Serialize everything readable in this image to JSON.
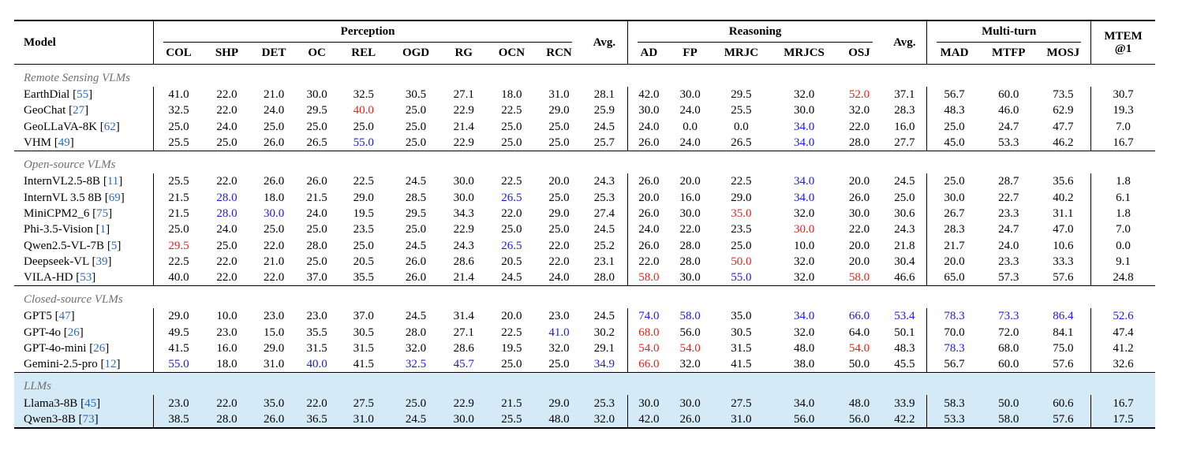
{
  "colors": {
    "best": "#e8231c",
    "second": "#1a1ae6",
    "citation": "#2a6ab8",
    "llm_row_bg": "#d4eaf6"
  },
  "header": {
    "model": "Model",
    "groups": {
      "perception": "Perception",
      "avg1": "Avg.",
      "reasoning": "Reasoning",
      "avg2": "Avg.",
      "multiturn": "Multi-turn",
      "mtem": "MTEM",
      "mtem_sub": "@1"
    },
    "perception_cols": [
      "COL",
      "SHP",
      "DET",
      "OC",
      "REL",
      "OGD",
      "RG",
      "OCN",
      "RCN"
    ],
    "reasoning_cols": [
      "AD",
      "FP",
      "MRJC",
      "MRJCS",
      "OSJ"
    ],
    "multiturn_cols": [
      "MAD",
      "MTFP",
      "MOSJ"
    ]
  },
  "sections": [
    {
      "title": "Remote Sensing VLMs",
      "highlight": false,
      "rows": [
        {
          "name": "EarthDial",
          "ref": "55",
          "vals": [
            "41.0",
            "22.0",
            "21.0",
            "30.0",
            "32.5",
            "30.5",
            "27.1",
            "18.0",
            "31.0",
            "28.1",
            "42.0",
            "30.0",
            "29.5",
            "32.0",
            "52.0",
            "37.1",
            "56.7",
            "60.0",
            "73.5",
            "30.7"
          ],
          "marks": {
            "14": "red"
          }
        },
        {
          "name": "GeoChat",
          "ref": "27",
          "vals": [
            "32.5",
            "22.0",
            "24.0",
            "29.5",
            "40.0",
            "25.0",
            "22.9",
            "22.5",
            "29.0",
            "25.9",
            "30.0",
            "24.0",
            "25.5",
            "30.0",
            "32.0",
            "28.3",
            "48.3",
            "46.0",
            "62.9",
            "19.3"
          ],
          "marks": {
            "4": "red"
          }
        },
        {
          "name": "GeoLLaVA-8K",
          "ref": "62",
          "vals": [
            "25.0",
            "24.0",
            "25.0",
            "25.0",
            "25.0",
            "25.0",
            "21.4",
            "25.0",
            "25.0",
            "24.5",
            "24.0",
            "0.0",
            "0.0",
            "34.0",
            "22.0",
            "16.0",
            "25.0",
            "24.7",
            "47.7",
            "7.0"
          ],
          "marks": {
            "13": "blue"
          }
        },
        {
          "name": "VHM",
          "ref": "49",
          "vals": [
            "25.5",
            "25.0",
            "26.0",
            "26.5",
            "55.0",
            "25.0",
            "22.9",
            "25.0",
            "25.0",
            "25.7",
            "26.0",
            "24.0",
            "26.5",
            "34.0",
            "28.0",
            "27.7",
            "45.0",
            "53.3",
            "46.2",
            "16.7"
          ],
          "marks": {
            "4": "blue",
            "13": "blue"
          }
        }
      ]
    },
    {
      "title": "Open-source VLMs",
      "highlight": false,
      "rows": [
        {
          "name": "InternVL2.5-8B",
          "ref": "11",
          "vals": [
            "25.5",
            "22.0",
            "26.0",
            "26.0",
            "22.5",
            "24.5",
            "30.0",
            "22.5",
            "20.0",
            "24.3",
            "26.0",
            "20.0",
            "22.5",
            "34.0",
            "20.0",
            "24.5",
            "25.0",
            "28.7",
            "35.6",
            "1.8"
          ],
          "marks": {
            "13": "blue"
          }
        },
        {
          "name": "InternVL 3.5 8B",
          "ref": "69",
          "vals": [
            "21.5",
            "28.0",
            "18.0",
            "21.5",
            "29.0",
            "28.5",
            "30.0",
            "26.5",
            "25.0",
            "25.3",
            "20.0",
            "16.0",
            "29.0",
            "34.0",
            "26.0",
            "25.0",
            "30.0",
            "22.7",
            "40.2",
            "6.1"
          ],
          "marks": {
            "1": "blue",
            "7": "blue",
            "13": "blue"
          }
        },
        {
          "name": "MiniCPM2_6",
          "ref": "75",
          "vals": [
            "21.5",
            "28.0",
            "30.0",
            "24.0",
            "19.5",
            "29.5",
            "34.3",
            "22.0",
            "29.0",
            "27.4",
            "26.0",
            "30.0",
            "35.0",
            "32.0",
            "30.0",
            "30.6",
            "26.7",
            "23.3",
            "31.1",
            "1.8"
          ],
          "marks": {
            "1": "blue",
            "2": "blue",
            "12": "red"
          }
        },
        {
          "name": "Phi-3.5-Vision",
          "ref": "1",
          "vals": [
            "25.0",
            "24.0",
            "25.0",
            "25.0",
            "23.5",
            "25.0",
            "22.9",
            "25.0",
            "25.0",
            "24.5",
            "24.0",
            "22.0",
            "23.5",
            "30.0",
            "22.0",
            "24.3",
            "28.3",
            "24.7",
            "47.0",
            "7.0"
          ],
          "marks": {
            "13": "red"
          }
        },
        {
          "name": "Qwen2.5-VL-7B",
          "ref": "5",
          "vals": [
            "29.5",
            "25.0",
            "22.0",
            "28.0",
            "25.0",
            "24.5",
            "24.3",
            "26.5",
            "22.0",
            "25.2",
            "26.0",
            "28.0",
            "25.0",
            "10.0",
            "20.0",
            "21.8",
            "21.7",
            "24.0",
            "10.6",
            "0.0"
          ],
          "marks": {
            "0": "red",
            "7": "blue"
          }
        },
        {
          "name": "Deepseek-VL",
          "ref": "39",
          "vals": [
            "22.5",
            "22.0",
            "21.0",
            "25.0",
            "20.5",
            "26.0",
            "28.6",
            "20.5",
            "22.0",
            "23.1",
            "22.0",
            "28.0",
            "50.0",
            "32.0",
            "20.0",
            "30.4",
            "20.0",
            "23.3",
            "33.3",
            "9.1"
          ],
          "marks": {
            "12": "red"
          }
        },
        {
          "name": "VILA-HD",
          "ref": "53",
          "vals": [
            "40.0",
            "22.0",
            "22.0",
            "37.0",
            "35.5",
            "26.0",
            "21.4",
            "24.5",
            "24.0",
            "28.0",
            "58.0",
            "30.0",
            "55.0",
            "32.0",
            "58.0",
            "46.6",
            "65.0",
            "57.3",
            "57.6",
            "24.8"
          ],
          "marks": {
            "10": "red",
            "12": "blue",
            "14": "red"
          }
        }
      ]
    },
    {
      "title": "Closed-source VLMs",
      "highlight": false,
      "rows": [
        {
          "name": "GPT5",
          "ref": "47",
          "vals": [
            "29.0",
            "10.0",
            "23.0",
            "23.0",
            "37.0",
            "24.5",
            "31.4",
            "20.0",
            "23.0",
            "24.5",
            "74.0",
            "58.0",
            "35.0",
            "34.0",
            "66.0",
            "53.4",
            "78.3",
            "73.3",
            "86.4",
            "52.6"
          ],
          "marks": {
            "10": "blue",
            "11": "blue",
            "13": "blue",
            "14": "blue",
            "15": "blue",
            "16": "blue",
            "17": "blue",
            "18": "blue",
            "19": "blue"
          }
        },
        {
          "name": "GPT-4o",
          "ref": "26",
          "vals": [
            "49.5",
            "23.0",
            "15.0",
            "35.5",
            "30.5",
            "28.0",
            "27.1",
            "22.5",
            "41.0",
            "30.2",
            "68.0",
            "56.0",
            "30.5",
            "32.0",
            "64.0",
            "50.1",
            "70.0",
            "72.0",
            "84.1",
            "47.4"
          ],
          "marks": {
            "8": "blue",
            "10": "red"
          }
        },
        {
          "name": "GPT-4o-mini",
          "ref": "26",
          "vals": [
            "41.5",
            "16.0",
            "29.0",
            "31.5",
            "31.5",
            "32.0",
            "28.6",
            "19.5",
            "32.0",
            "29.1",
            "54.0",
            "54.0",
            "31.5",
            "48.0",
            "54.0",
            "48.3",
            "78.3",
            "68.0",
            "75.0",
            "41.2"
          ],
          "marks": {
            "10": "red",
            "11": "red",
            "14": "red",
            "16": "blue"
          }
        },
        {
          "name": "Gemini-2.5-pro",
          "ref": "12",
          "vals": [
            "55.0",
            "18.0",
            "31.0",
            "40.0",
            "41.5",
            "32.5",
            "45.7",
            "25.0",
            "25.0",
            "34.9",
            "66.0",
            "32.0",
            "41.5",
            "38.0",
            "50.0",
            "45.5",
            "56.7",
            "60.0",
            "57.6",
            "32.6"
          ],
          "marks": {
            "0": "blue",
            "3": "blue",
            "5": "blue",
            "6": "blue",
            "9": "blue",
            "10": "red"
          }
        }
      ]
    },
    {
      "title": "LLMs",
      "highlight": true,
      "rows": [
        {
          "name": "Llama3-8B",
          "ref": "45",
          "vals": [
            "23.0",
            "22.0",
            "35.0",
            "22.0",
            "27.5",
            "25.0",
            "22.9",
            "21.5",
            "29.0",
            "25.3",
            "30.0",
            "30.0",
            "27.5",
            "34.0",
            "48.0",
            "33.9",
            "58.3",
            "50.0",
            "60.6",
            "16.7"
          ],
          "marks": {}
        },
        {
          "name": "Qwen3-8B",
          "ref": "73",
          "vals": [
            "38.5",
            "28.0",
            "26.0",
            "36.5",
            "31.0",
            "24.5",
            "30.0",
            "25.5",
            "48.0",
            "32.0",
            "42.0",
            "26.0",
            "31.0",
            "56.0",
            "56.0",
            "42.2",
            "53.3",
            "58.0",
            "57.6",
            "17.5"
          ],
          "marks": {}
        }
      ]
    }
  ]
}
